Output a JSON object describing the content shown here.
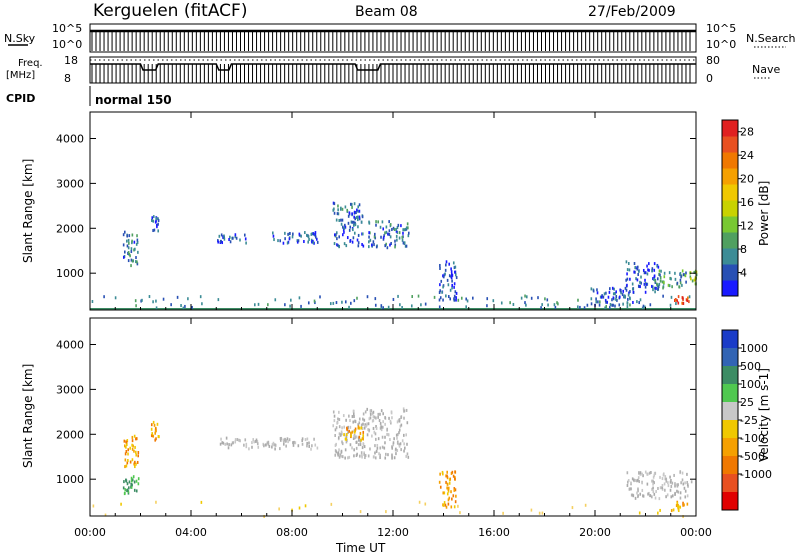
{
  "header": {
    "site": "Kerguelen (fitACF)",
    "beam": "Beam 08",
    "date": "27/Feb/2009"
  },
  "top_panels": {
    "nsky": {
      "label": "N.Sky",
      "ticks_left": [
        "10^5",
        "10^0"
      ],
      "ticks_right": [
        "10^5",
        "10^0"
      ],
      "right_label": "N.Search"
    },
    "freq": {
      "label_line1": "Freq.",
      "label_line2": "[MHz]",
      "ticks_left": [
        "18",
        "8"
      ],
      "ticks_right": [
        "80",
        "0"
      ],
      "right_label": "Nave"
    },
    "cpid": {
      "label": "CPID",
      "mode": "normal 150"
    }
  },
  "chart_data": [
    {
      "type": "heatmap",
      "panel": "power",
      "xlabel": "",
      "ylabel": "Slant Range [km]",
      "x_ticks": [
        "00:00",
        "04:00",
        "08:00",
        "12:00",
        "16:00",
        "20:00",
        "00:00"
      ],
      "x_range_hours": [
        0,
        24
      ],
      "y_ticks": [
        1000,
        2000,
        3000,
        4000
      ],
      "y_range_km": [
        180,
        4590
      ],
      "colorbar": {
        "label": "Power [dB]",
        "ticks": [
          "4",
          "8",
          "12",
          "16",
          "20",
          "24",
          "28"
        ],
        "range": [
          0,
          30
        ],
        "colors": [
          "#1a1aff",
          "#2850b4",
          "#3c8c96",
          "#50a060",
          "#78c832",
          "#c8d200",
          "#f0c800",
          "#f5a000",
          "#f07800",
          "#e85020",
          "#e02020"
        ]
      },
      "scatter_groups": [
        {
          "t": [
            1.3,
            1.9
          ],
          "r": [
            1200,
            1950
          ],
          "v": 6
        },
        {
          "t": [
            2.4,
            2.7
          ],
          "r": [
            1900,
            2300
          ],
          "v": 4
        },
        {
          "t": [
            5.0,
            6.2
          ],
          "r": [
            1700,
            1900
          ],
          "v": 4
        },
        {
          "t": [
            7.0,
            9.0
          ],
          "r": [
            1700,
            1950
          ],
          "v": 4
        },
        {
          "t": [
            9.6,
            10.8
          ],
          "r": [
            1600,
            2600
          ],
          "v": 5
        },
        {
          "t": [
            11.0,
            12.6
          ],
          "r": [
            1600,
            2200
          ],
          "v": 6
        },
        {
          "t": [
            13.8,
            14.5
          ],
          "r": [
            400,
            1300
          ],
          "v": 4
        },
        {
          "t": [
            19.8,
            21.5
          ],
          "r": [
            300,
            700
          ],
          "v": 4
        },
        {
          "t": [
            21.2,
            22.5
          ],
          "r": [
            600,
            1300
          ],
          "v": 4
        },
        {
          "t": [
            22.3,
            23.6
          ],
          "r": [
            700,
            1100
          ],
          "v": 8
        },
        {
          "t": [
            23.0,
            23.7
          ],
          "r": [
            330,
            520
          ],
          "v": 26
        },
        {
          "t": [
            23.7,
            24.0
          ],
          "r": [
            750,
            1100
          ],
          "v": 12
        }
      ],
      "ground_line_km": 180
    },
    {
      "type": "heatmap",
      "panel": "velocity",
      "xlabel": "Time UT",
      "ylabel": "Slant Range [km]",
      "x_ticks": [
        "00:00",
        "04:00",
        "08:00",
        "12:00",
        "16:00",
        "20:00",
        "00:00"
      ],
      "x_range_hours": [
        0,
        24
      ],
      "y_ticks": [
        1000,
        2000,
        3000,
        4000
      ],
      "y_range_km": [
        180,
        4590
      ],
      "colorbar": {
        "label": "Velocity [m s-1]",
        "ticks": [
          "1000",
          "500",
          "100",
          "25",
          "-25",
          "-100",
          "-500",
          "-1000"
        ],
        "colors": [
          "#1a3cc8",
          "#3264b4",
          "#3c8c64",
          "#50c850",
          "#c8c8c8",
          "#f0c800",
          "#f5a000",
          "#f07800",
          "#e85020",
          "#e00000"
        ]
      },
      "scatter_groups": [
        {
          "t": [
            1.3,
            1.9
          ],
          "r": [
            1300,
            2000
          ],
          "c": "orange"
        },
        {
          "t": [
            1.3,
            1.9
          ],
          "r": [
            700,
            1200
          ],
          "c": "green"
        },
        {
          "t": [
            2.4,
            2.7
          ],
          "r": [
            1900,
            2300
          ],
          "c": "orange"
        },
        {
          "t": [
            5.0,
            9.0
          ],
          "r": [
            1700,
            1950
          ],
          "c": "gray"
        },
        {
          "t": [
            9.6,
            12.6
          ],
          "r": [
            1500,
            2600
          ],
          "c": "gray"
        },
        {
          "t": [
            10.0,
            10.8
          ],
          "r": [
            1900,
            2200
          ],
          "c": "orange"
        },
        {
          "t": [
            13.8,
            14.5
          ],
          "r": [
            400,
            1200
          ],
          "c": "orange"
        },
        {
          "t": [
            21.2,
            23.8
          ],
          "r": [
            600,
            1200
          ],
          "c": "gray"
        },
        {
          "t": [
            23.0,
            23.7
          ],
          "r": [
            330,
            520
          ],
          "c": "orange"
        },
        {
          "t": [
            0.0,
            24.0
          ],
          "r": [
            200,
            520
          ],
          "c": "orange_sparse"
        }
      ]
    }
  ]
}
